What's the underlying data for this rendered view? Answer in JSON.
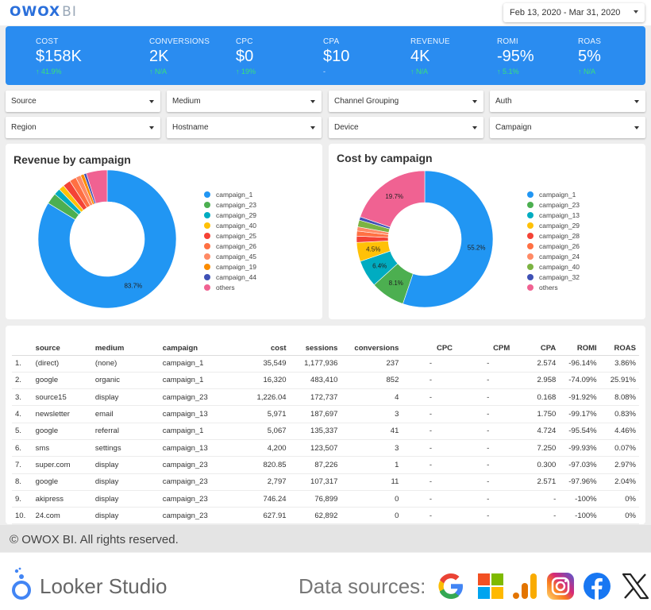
{
  "header": {
    "logo_main": "OWOX",
    "logo_suffix": "BI",
    "date_range": "Feb 13, 2020 - Mar 31, 2020"
  },
  "kpis": [
    {
      "label": "COST",
      "value": "$158K",
      "delta": "41.9%",
      "arrow": true
    },
    {
      "label": "CONVERSIONS",
      "value": "2K",
      "delta": "N/A",
      "arrow": true
    },
    {
      "label": "CPC",
      "value": "$0",
      "delta": "19%",
      "arrow": true
    },
    {
      "label": "CPA",
      "value": "$10",
      "delta": "-",
      "arrow": false
    },
    {
      "label": "REVENUE",
      "value": "4K",
      "delta": "N/A",
      "arrow": true
    },
    {
      "label": "ROMI",
      "value": "-95%",
      "delta": "5.1%",
      "arrow": true
    },
    {
      "label": "ROAS",
      "value": "5%",
      "delta": "N/A",
      "arrow": true
    }
  ],
  "filters": [
    "Source",
    "Medium",
    "Channel Grouping",
    "Auth",
    "Region",
    "Hostname",
    "Device",
    "Campaign"
  ],
  "colors": {
    "kpi_bg": "#2a8cf0",
    "positive": "#39e27a",
    "palette": [
      "#2196f3",
      "#4caf50",
      "#00acc1",
      "#ffc107",
      "#f44336",
      "#ff7043",
      "#ff8a65",
      "#fb8c00",
      "#7cb342",
      "#3f51b5",
      "#f06292"
    ]
  },
  "chart_data": [
    {
      "type": "pie",
      "title": "Revenue by campaign",
      "labels": [
        "campaign_1",
        "campaign_23",
        "campaign_29",
        "campaign_40",
        "campaign_25",
        "campaign_26",
        "campaign_45",
        "campaign_19",
        "campaign_44",
        "others"
      ],
      "values": [
        83.7,
        2.6,
        1.5,
        1.3,
        1.8,
        1.6,
        1.2,
        0.8,
        0.6,
        4.9
      ],
      "colors": [
        "#2196f3",
        "#4caf50",
        "#00acc1",
        "#ffc107",
        "#f44336",
        "#ff7043",
        "#ff8a65",
        "#fb8c00",
        "#3f51b5",
        "#f06292"
      ],
      "value_labels": {
        "0": "83.7%"
      },
      "legend_position": "right"
    },
    {
      "type": "pie",
      "title": "Cost by campaign",
      "labels": [
        "campaign_1",
        "campaign_23",
        "campaign_13",
        "campaign_29",
        "campaign_28",
        "campaign_26",
        "campaign_24",
        "campaign_40",
        "campaign_32",
        "others"
      ],
      "values": [
        55.2,
        8.1,
        6.4,
        4.5,
        1.5,
        1.2,
        1.0,
        1.6,
        0.8,
        19.7
      ],
      "colors": [
        "#2196f3",
        "#4caf50",
        "#00acc1",
        "#ffc107",
        "#f44336",
        "#ff7043",
        "#ff8a65",
        "#7cb342",
        "#3f51b5",
        "#f06292"
      ],
      "value_labels": {
        "0": "55.2%",
        "1": "8.1%",
        "2": "6.4%",
        "3": "4.5%",
        "9": "19.7%"
      },
      "legend_position": "right"
    }
  ],
  "table": {
    "headers": [
      "",
      "source",
      "medium",
      "campaign",
      "cost",
      "sessions",
      "conversions",
      "CPC",
      "CPM",
      "CPA",
      "ROMI",
      "ROAS"
    ],
    "rows": [
      [
        "1.",
        "(direct)",
        "(none)",
        "campaign_1",
        "35,549",
        "1,177,936",
        "237",
        "-",
        "-",
        "2.574",
        "-96.14%",
        "3.86%"
      ],
      [
        "2.",
        "google",
        "organic",
        "campaign_1",
        "16,320",
        "483,410",
        "852",
        "-",
        "-",
        "2.958",
        "-74.09%",
        "25.91%"
      ],
      [
        "3.",
        "source15",
        "display",
        "campaign_23",
        "1,226.04",
        "172,737",
        "4",
        "-",
        "-",
        "0.168",
        "-91.92%",
        "8.08%"
      ],
      [
        "4.",
        "newsletter",
        "email",
        "campaign_13",
        "5,971",
        "187,697",
        "3",
        "-",
        "-",
        "1.750",
        "-99.17%",
        "0.83%"
      ],
      [
        "5.",
        "google",
        "referral",
        "campaign_1",
        "5,067",
        "135,337",
        "41",
        "-",
        "-",
        "4.724",
        "-95.54%",
        "4.46%"
      ],
      [
        "6.",
        "sms",
        "settings",
        "campaign_13",
        "4,200",
        "123,507",
        "3",
        "-",
        "-",
        "7.250",
        "-99.93%",
        "0.07%"
      ],
      [
        "7.",
        "super.com",
        "display",
        "campaign_23",
        "820.85",
        "87,226",
        "1",
        "-",
        "-",
        "0.300",
        "-97.03%",
        "2.97%"
      ],
      [
        "8.",
        "google",
        "display",
        "campaign_23",
        "2,797",
        "107,317",
        "11",
        "-",
        "-",
        "2.571",
        "-97.96%",
        "2.04%"
      ],
      [
        "9.",
        "akipress",
        "display",
        "campaign_23",
        "746.24",
        "76,899",
        "0",
        "-",
        "-",
        "-",
        "-100%",
        "0%"
      ],
      [
        "10.",
        "24.com",
        "display",
        "campaign_23",
        "627.91",
        "62,892",
        "0",
        "-",
        "-",
        "-",
        "-100%",
        "0%"
      ]
    ]
  },
  "footer": {
    "copyright": "© OWOX BI. All rights reserved.",
    "looker": "Looker Studio",
    "data_sources_label": "Data sources:",
    "source_icons": [
      "google-icon",
      "microsoft-icon",
      "google-analytics-icon",
      "instagram-icon",
      "facebook-icon",
      "x-icon"
    ]
  }
}
